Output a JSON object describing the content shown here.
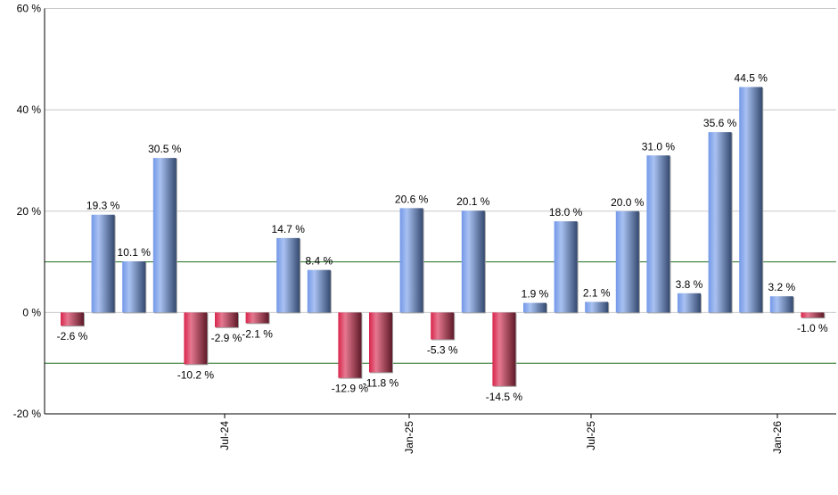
{
  "chart_data": {
    "type": "bar",
    "title": "",
    "xlabel": "",
    "ylabel": "",
    "ylim": [
      -20,
      60
    ],
    "yticks": [
      -20,
      0,
      20,
      40,
      60
    ],
    "ytick_labels": [
      "-20 %",
      "0 %",
      "20 %",
      "40 %",
      "60 %"
    ],
    "y_unit_suffix": " %",
    "reference_lines": [
      10,
      -10
    ],
    "grid": true,
    "xtick_labels": [
      "Jul-24",
      "Jan-25",
      "Jul-25",
      "Jan-26"
    ],
    "values": [
      -2.6,
      19.3,
      10.1,
      30.5,
      -10.2,
      -2.9,
      -2.1,
      14.7,
      8.4,
      -12.9,
      -11.8,
      20.6,
      -5.3,
      20.1,
      -14.5,
      1.9,
      18.0,
      2.1,
      20.0,
      31.0,
      3.8,
      35.6,
      44.5,
      3.2,
      -1.0
    ],
    "colors": {
      "positive": "#7b9ee6",
      "negative": "#d42a4f",
      "reference_line": "#1f6b1f",
      "grid": "#c8c8c8"
    }
  }
}
